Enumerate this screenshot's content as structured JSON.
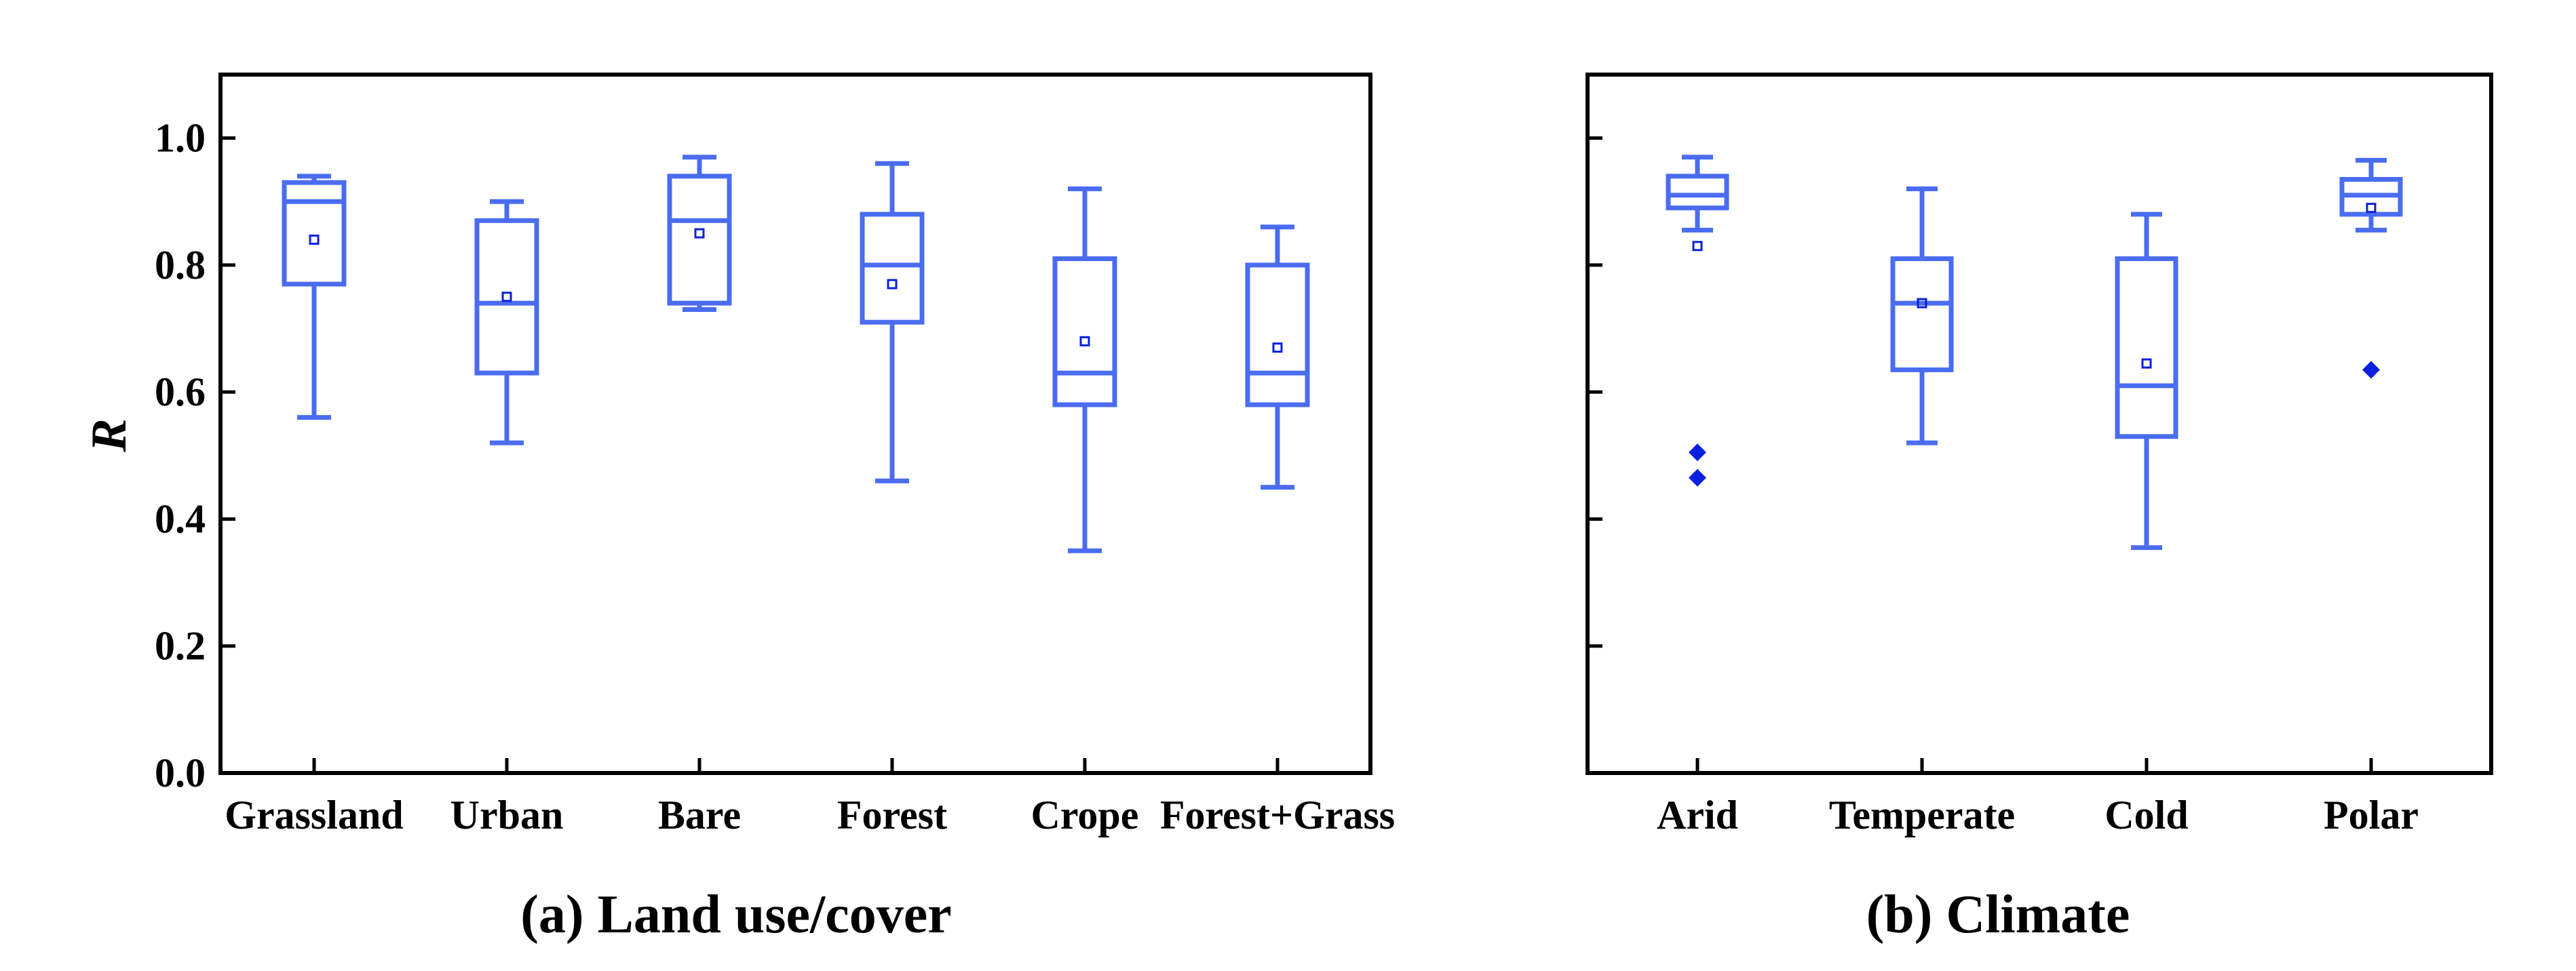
{
  "colors": {
    "box": "#4a6cf0",
    "outlier": "#0b1fe0",
    "axis": "#000000",
    "background": "#ffffff"
  },
  "chart_data": [
    {
      "type": "box",
      "title": "(a) Land use/cover",
      "ylabel": "R",
      "ylim": [
        0,
        1.1
      ],
      "yticks": [
        0.0,
        0.2,
        0.4,
        0.6,
        0.8,
        1.0
      ],
      "ytick_labels": [
        "0.0",
        "0.2",
        "0.4",
        "0.6",
        "0.8",
        "1.0"
      ],
      "grid": false,
      "categories": [
        "Grassland",
        "Urban",
        "Bare",
        "Forest",
        "Crope",
        "Forest+Grass"
      ],
      "boxes": [
        {
          "whisker_low": 0.56,
          "q1": 0.77,
          "median": 0.9,
          "q3": 0.93,
          "whisker_high": 0.94,
          "mean": 0.84,
          "outliers": []
        },
        {
          "whisker_low": 0.52,
          "q1": 0.63,
          "median": 0.74,
          "q3": 0.87,
          "whisker_high": 0.9,
          "mean": 0.75,
          "outliers": []
        },
        {
          "whisker_low": 0.73,
          "q1": 0.74,
          "median": 0.87,
          "q3": 0.94,
          "whisker_high": 0.97,
          "mean": 0.85,
          "outliers": []
        },
        {
          "whisker_low": 0.46,
          "q1": 0.71,
          "median": 0.8,
          "q3": 0.88,
          "whisker_high": 0.96,
          "mean": 0.77,
          "outliers": []
        },
        {
          "whisker_low": 0.35,
          "q1": 0.58,
          "median": 0.63,
          "q3": 0.81,
          "whisker_high": 0.92,
          "mean": 0.68,
          "outliers": []
        },
        {
          "whisker_low": 0.45,
          "q1": 0.58,
          "median": 0.63,
          "q3": 0.8,
          "whisker_high": 0.86,
          "mean": 0.67,
          "outliers": []
        }
      ]
    },
    {
      "type": "box",
      "title": "(b) Climate",
      "ylim": [
        0,
        1.1
      ],
      "yticks": [
        0.0,
        0.2,
        0.4,
        0.6,
        0.8,
        1.0
      ],
      "grid": false,
      "categories": [
        "Arid",
        "Temperate",
        "Cold",
        "Polar"
      ],
      "boxes": [
        {
          "whisker_low": 0.855,
          "q1": 0.89,
          "median": 0.91,
          "q3": 0.94,
          "whisker_high": 0.97,
          "mean": 0.83,
          "outliers": [
            0.505,
            0.465
          ]
        },
        {
          "whisker_low": 0.52,
          "q1": 0.635,
          "median": 0.74,
          "q3": 0.81,
          "whisker_high": 0.92,
          "mean": 0.74,
          "outliers": []
        },
        {
          "whisker_low": 0.355,
          "q1": 0.53,
          "median": 0.61,
          "q3": 0.81,
          "whisker_high": 0.88,
          "mean": 0.645,
          "outliers": []
        },
        {
          "whisker_low": 0.855,
          "q1": 0.88,
          "median": 0.91,
          "q3": 0.935,
          "whisker_high": 0.965,
          "mean": 0.89,
          "outliers": [
            0.635
          ]
        }
      ]
    }
  ]
}
